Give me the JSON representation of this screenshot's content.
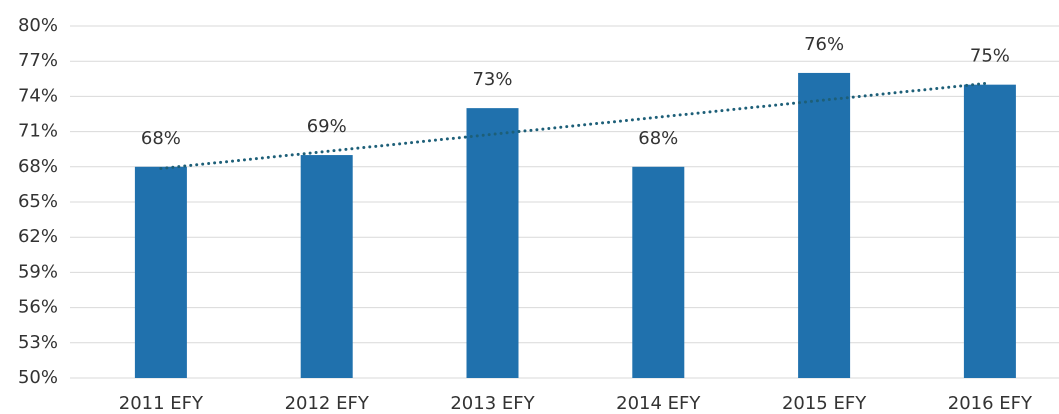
{
  "chart_data": {
    "type": "bar",
    "categories": [
      "2011 EFY",
      "2012 EFY",
      "2013 EFY",
      "2014 EFY",
      "2015 EFY",
      "2016 EFY"
    ],
    "values": [
      68,
      69,
      73,
      68,
      76,
      75
    ],
    "value_labels": [
      "68%",
      "69%",
      "73%",
      "68%",
      "76%",
      "75%"
    ],
    "color": "#2071ad",
    "ylim": [
      50,
      80
    ],
    "yticks": [
      {
        "value": 50,
        "label": "50%"
      },
      {
        "value": 53,
        "label": "53%"
      },
      {
        "value": 56,
        "label": "56%"
      },
      {
        "value": 59,
        "label": "59%"
      },
      {
        "value": 62,
        "label": "62%"
      },
      {
        "value": 65,
        "label": "65%"
      },
      {
        "value": 68,
        "label": "68%"
      },
      {
        "value": 71,
        "label": "71%"
      },
      {
        "value": 74,
        "label": "74%"
      },
      {
        "value": 77,
        "label": "77%"
      },
      {
        "value": 80,
        "label": "80%"
      }
    ],
    "grid": true,
    "trendline": true,
    "trendline_color": "#1d5f78"
  }
}
